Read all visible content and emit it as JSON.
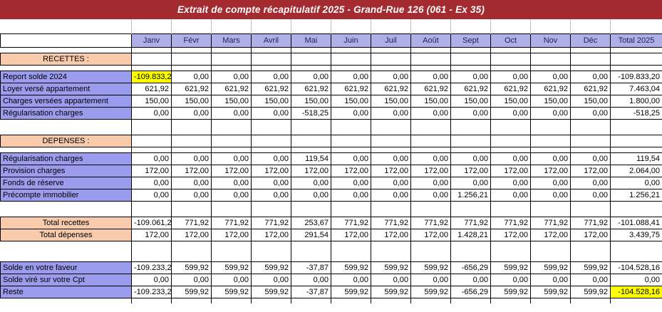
{
  "title": "Extrait de compte récapitulatif 2025 - Grand-Rue 126 (061 - Ex 35)",
  "colors": {
    "banner": "#A42B30",
    "header_bg": "#AFAFE8",
    "label_bg": "#9C9CEE",
    "section_bg": "#F8CBAD",
    "highlight_bg": "#FFFF00",
    "header_text": "#202060"
  },
  "table": {
    "columns": [
      "Janv",
      "Févr",
      "Mars",
      "Avril",
      "Mai",
      "Juin",
      "Juil",
      "Août",
      "Sept",
      "Oct",
      "Nov",
      "Déc",
      "Total 2025"
    ],
    "rows": [
      {
        "type": "top-spacer"
      },
      {
        "type": "header"
      },
      {
        "type": "spacer"
      },
      {
        "type": "section",
        "label": "RECETTES :"
      },
      {
        "type": "spacer"
      },
      {
        "type": "data",
        "label": "Report solde 2024",
        "highlight": 0,
        "values": [
          "-109.833,20",
          "0,00",
          "0,00",
          "0,00",
          "0,00",
          "0,00",
          "0,00",
          "0,00",
          "0,00",
          "0,00",
          "0,00",
          "0,00",
          "-109.833,20"
        ]
      },
      {
        "type": "data",
        "label": "Loyer versé appartement",
        "values": [
          "621,92",
          "621,92",
          "621,92",
          "621,92",
          "621,92",
          "621,92",
          "621,92",
          "621,92",
          "621,92",
          "621,92",
          "621,92",
          "621,92",
          "7.463,04"
        ]
      },
      {
        "type": "data",
        "label": "Charges versées appartement",
        "values": [
          "150,00",
          "150,00",
          "150,00",
          "150,00",
          "150,00",
          "150,00",
          "150,00",
          "150,00",
          "150,00",
          "150,00",
          "150,00",
          "150,00",
          "1.800,00"
        ]
      },
      {
        "type": "data",
        "label": "Régularisation charges",
        "values": [
          "0,00",
          "0,00",
          "0,00",
          "0,00",
          "-518,25",
          "0,00",
          "0,00",
          "0,00",
          "0,00",
          "0,00",
          "0,00",
          "0,00",
          "-518,25"
        ]
      },
      {
        "type": "spacer"
      },
      {
        "type": "blank"
      },
      {
        "type": "section",
        "label": "DEPENSES :"
      },
      {
        "type": "spacer"
      },
      {
        "type": "data",
        "label": "Régularisation charges",
        "values": [
          "0,00",
          "0,00",
          "0,00",
          "0,00",
          "119,54",
          "0,00",
          "0,00",
          "0,00",
          "0,00",
          "0,00",
          "0,00",
          "0,00",
          "119,54"
        ]
      },
      {
        "type": "data",
        "label": "Provision charges",
        "values": [
          "172,00",
          "172,00",
          "172,00",
          "172,00",
          "172,00",
          "172,00",
          "172,00",
          "172,00",
          "172,00",
          "172,00",
          "172,00",
          "172,00",
          "2.064,00"
        ]
      },
      {
        "type": "data",
        "label": "Fonds de réserve",
        "values": [
          "0,00",
          "0,00",
          "0,00",
          "0,00",
          "0,00",
          "0,00",
          "0,00",
          "0,00",
          "0,00",
          "0,00",
          "0,00",
          "0,00",
          "0,00"
        ]
      },
      {
        "type": "data",
        "label": "Précompte immobilier",
        "values": [
          "0,00",
          "0,00",
          "0,00",
          "0,00",
          "0,00",
          "0,00",
          "0,00",
          "0,00",
          "1.256,21",
          "0,00",
          "0,00",
          "0,00",
          "1.256,21"
        ]
      },
      {
        "type": "spacer"
      },
      {
        "type": "blank"
      },
      {
        "type": "total",
        "label": "Total recettes",
        "values": [
          "-109.061,28",
          "771,92",
          "771,92",
          "771,92",
          "253,67",
          "771,92",
          "771,92",
          "771,92",
          "771,92",
          "771,92",
          "771,92",
          "771,92",
          "-101.088,41"
        ]
      },
      {
        "type": "total",
        "label": "Total dépenses",
        "values": [
          "172,00",
          "172,00",
          "172,00",
          "172,00",
          "291,54",
          "172,00",
          "172,00",
          "172,00",
          "1.428,21",
          "172,00",
          "172,00",
          "172,00",
          "3.439,75"
        ]
      },
      {
        "type": "spacer"
      },
      {
        "type": "blank"
      },
      {
        "type": "spacer"
      },
      {
        "type": "data",
        "label": "Solde en votre faveur",
        "values": [
          "-109.233,28",
          "599,92",
          "599,92",
          "599,92",
          "-37,87",
          "599,92",
          "599,92",
          "599,92",
          "-656,29",
          "599,92",
          "599,92",
          "599,92",
          "-104.528,16"
        ]
      },
      {
        "type": "data",
        "label": "Solde viré sur votre Cpt",
        "values": [
          "0,00",
          "0,00",
          "0,00",
          "0,00",
          "0,00",
          "0,00",
          "0,00",
          "0,00",
          "0,00",
          "0,00",
          "0,00",
          "0,00",
          "0,00"
        ]
      },
      {
        "type": "data",
        "label": "Reste",
        "highlight": 12,
        "values": [
          "-109.233,28",
          "599,92",
          "599,92",
          "599,92",
          "-37,87",
          "599,92",
          "599,92",
          "599,92",
          "-656,29",
          "599,92",
          "599,92",
          "599,92",
          "-104.528,16"
        ]
      },
      {
        "type": "spacer"
      }
    ]
  }
}
